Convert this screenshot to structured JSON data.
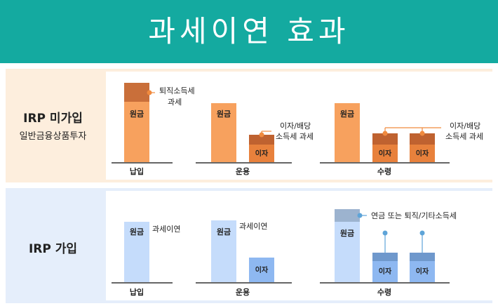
{
  "title": "과세이연 효과",
  "rows": [
    {
      "label": "IRP 미가입",
      "sublabel": "일반금융상품투자",
      "colors": {
        "principal": "#f7a15e",
        "tax": "#c96f3a",
        "interest": "#e8813c",
        "interest_tax": "#bf6230",
        "leader": "#f08a3e"
      },
      "stages": [
        {
          "name": "납입",
          "principal": "원금",
          "tax_note": "퇴직소득세\n과세"
        },
        {
          "name": "운용",
          "principal": "원금",
          "interest": "이자",
          "tax_note": "이자/배당\n소득세 과세"
        },
        {
          "name": "수령",
          "principal": "원금",
          "interest": "이자",
          "tax_note": "이자/배당\n소득세 과세"
        }
      ]
    },
    {
      "label": "IRP 가입",
      "sublabel": "",
      "colors": {
        "principal": "#c5dcfb",
        "tax": "#9cb3cf",
        "interest": "#8eb8f1",
        "interest_tax": "#6f98cc",
        "leader": "#5ea4d8"
      },
      "stages": [
        {
          "name": "납입",
          "principal": "원금",
          "tax_note": "과세이연"
        },
        {
          "name": "운용",
          "principal": "원금",
          "interest": "이자",
          "tax_note": "과세이연"
        },
        {
          "name": "수령",
          "principal": "원금",
          "interest": "이자",
          "tax_note": "연금 또는 퇴직/기타소득세"
        }
      ]
    }
  ]
}
